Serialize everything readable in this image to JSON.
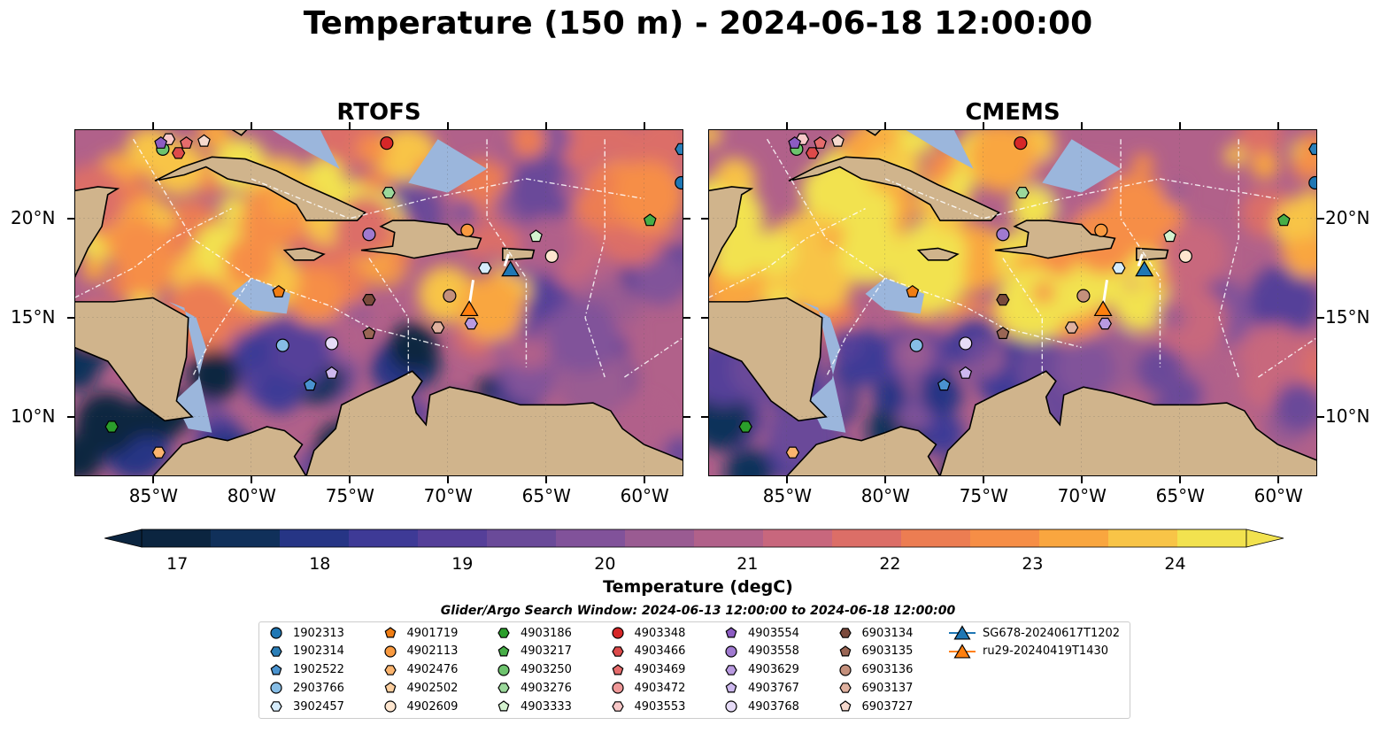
{
  "title": "Temperature (150 m) - 2024-06-18 12:00:00",
  "panels": [
    {
      "name": "RTOFS"
    },
    {
      "name": "CMEMS"
    }
  ],
  "axes": {
    "lon_ticks": [
      "85°W",
      "80°W",
      "75°W",
      "70°W",
      "65°W",
      "60°W"
    ],
    "lat_ticks": [
      "20°N",
      "15°N",
      "10°N"
    ]
  },
  "colorbar": {
    "label": "Temperature (degC)",
    "ticks": [
      "17",
      "18",
      "19",
      "20",
      "21",
      "22",
      "23",
      "24"
    ],
    "range": [
      16.75,
      24.5
    ],
    "colors": [
      "#0b2540",
      "#10305a",
      "#263585",
      "#3e3a96",
      "#553f99",
      "#6a4a99",
      "#81529a",
      "#9a5b92",
      "#b1618a",
      "#c8677d",
      "#dc6e67",
      "#ec7d52",
      "#f68e46",
      "#f9a63f",
      "#f8c447",
      "#f2e24f"
    ]
  },
  "search_window": "Glider/Argo Search Window: 2024-06-13 12:00:00 to 2024-06-18 12:00:00",
  "legend": [
    {
      "label": "1902313",
      "marker": "circle",
      "color": "#1f77b4"
    },
    {
      "label": "1902314",
      "marker": "hexagon",
      "color": "#2b7fb8"
    },
    {
      "label": "1902522",
      "marker": "pentagon",
      "color": "#4a93cf"
    },
    {
      "label": "2903766",
      "marker": "circle",
      "color": "#86bde6"
    },
    {
      "label": "3902457",
      "marker": "hexagon",
      "color": "#d6ecfb"
    },
    {
      "label": "4901719",
      "marker": "pentagon",
      "color": "#f07d13"
    },
    {
      "label": "4902113",
      "marker": "circle",
      "color": "#f99a40"
    },
    {
      "label": "4902476",
      "marker": "hexagon",
      "color": "#fbb46e"
    },
    {
      "label": "4902502",
      "marker": "pentagon",
      "color": "#fdcf9f"
    },
    {
      "label": "4902609",
      "marker": "circle",
      "color": "#fee6cf"
    },
    {
      "label": "4903186",
      "marker": "hexagon",
      "color": "#2b9e2b"
    },
    {
      "label": "4903217",
      "marker": "pentagon",
      "color": "#47ae47"
    },
    {
      "label": "4903250",
      "marker": "circle",
      "color": "#6dc36d"
    },
    {
      "label": "4903276",
      "marker": "hexagon",
      "color": "#9bd89b"
    },
    {
      "label": "4903333",
      "marker": "pentagon",
      "color": "#d4f2cf"
    },
    {
      "label": "4903348",
      "marker": "circle",
      "color": "#d62728"
    },
    {
      "label": "4903466",
      "marker": "hexagon",
      "color": "#dd4a4a"
    },
    {
      "label": "4903469",
      "marker": "pentagon",
      "color": "#e66c6c"
    },
    {
      "label": "4903472",
      "marker": "circle",
      "color": "#ef9898"
    },
    {
      "label": "4903553",
      "marker": "hexagon",
      "color": "#f8c8c8"
    },
    {
      "label": "4903554",
      "marker": "pentagon",
      "color": "#8c5cc2"
    },
    {
      "label": "4903558",
      "marker": "circle",
      "color": "#a07ad0"
    },
    {
      "label": "4903629",
      "marker": "hexagon",
      "color": "#b99ae0"
    },
    {
      "label": "4903767",
      "marker": "pentagon",
      "color": "#cdb8ee"
    },
    {
      "label": "4903768",
      "marker": "circle",
      "color": "#e6dbf7"
    },
    {
      "label": "6903134",
      "marker": "hexagon",
      "color": "#7b4a3c"
    },
    {
      "label": "6903135",
      "marker": "pentagon",
      "color": "#9a6655"
    },
    {
      "label": "6903136",
      "marker": "circle",
      "color": "#c4907c"
    },
    {
      "label": "6903137",
      "marker": "hexagon",
      "color": "#e0b19f"
    },
    {
      "label": "6903727",
      "marker": "pentagon",
      "color": "#f6d9cd"
    },
    {
      "label": "SG678-20240617T1202",
      "marker": "triangle",
      "color": "#1f77b4"
    },
    {
      "label": "ru29-20240419T1430",
      "marker": "triangle",
      "color": "#ff7f0e"
    }
  ],
  "map_extent": {
    "lon": [
      -89,
      -58
    ],
    "lat": [
      7,
      24.5
    ]
  },
  "float_positions": [
    {
      "id": "1902313",
      "lon": -58.1,
      "lat": 21.8
    },
    {
      "id": "1902314",
      "lon": -58.1,
      "lat": 23.5
    },
    {
      "id": "4902476",
      "lon": -84.7,
      "lat": 8.2
    },
    {
      "id": "4903186",
      "lon": -87.1,
      "lat": 9.5
    },
    {
      "id": "4903217",
      "lon": -59.7,
      "lat": 19.9
    },
    {
      "id": "4903250",
      "lon": -84.5,
      "lat": 23.5
    },
    {
      "id": "4903276",
      "lon": -73.0,
      "lat": 21.3
    },
    {
      "id": "4903333",
      "lon": -65.5,
      "lat": 19.1
    },
    {
      "id": "4903348",
      "lon": -73.1,
      "lat": 23.8
    },
    {
      "id": "4903466",
      "lon": -83.7,
      "lat": 23.3
    },
    {
      "id": "4903469",
      "lon": -83.3,
      "lat": 23.8
    },
    {
      "id": "4903553",
      "lon": -84.2,
      "lat": 24.0
    },
    {
      "id": "4903554",
      "lon": -84.6,
      "lat": 23.8
    },
    {
      "id": "4903558",
      "lon": -74.0,
      "lat": 19.2
    },
    {
      "id": "4903629",
      "lon": -68.8,
      "lat": 14.7
    },
    {
      "id": "4903767",
      "lon": -75.9,
      "lat": 12.2
    },
    {
      "id": "4903768",
      "lon": -75.9,
      "lat": 13.7
    },
    {
      "id": "6903134",
      "lon": -74.0,
      "lat": 15.9
    },
    {
      "id": "6903135",
      "lon": -74.0,
      "lat": 14.2
    },
    {
      "id": "6903136",
      "lon": -69.9,
      "lat": 16.1
    },
    {
      "id": "6903137",
      "lon": -70.5,
      "lat": 14.5
    },
    {
      "id": "6903727",
      "lon": -82.4,
      "lat": 23.9
    },
    {
      "id": "2903766",
      "lon": -78.4,
      "lat": 13.6
    },
    {
      "id": "3902457",
      "lon": -68.1,
      "lat": 17.5
    },
    {
      "id": "1902522",
      "lon": -77.0,
      "lat": 11.6
    },
    {
      "id": "4901719",
      "lon": -78.6,
      "lat": 16.3
    },
    {
      "id": "4902113",
      "lon": -69.0,
      "lat": 19.4
    },
    {
      "id": "4902609",
      "lon": -64.7,
      "lat": 18.1
    },
    {
      "id": "SG678-20240617T1202",
      "lon": -66.8,
      "lat": 17.4
    },
    {
      "id": "ru29-20240419T1430",
      "lon": -68.9,
      "lat": 15.4
    }
  ]
}
